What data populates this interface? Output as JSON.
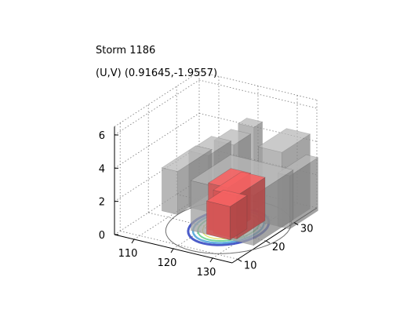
{
  "chart_data": {
    "type": "surface3d",
    "title_lines": [
      "Storm 1186",
      "(U,V) (0.91645,-1.9557)"
    ],
    "xlabel": "",
    "ylabel": "",
    "zlabel": "",
    "x_ticks": [
      110,
      120,
      130
    ],
    "y_ticks": [
      10,
      20,
      30
    ],
    "z_ticks": [
      0,
      2,
      4,
      6
    ],
    "xlim": [
      105,
      135
    ],
    "ylim": [
      8,
      38
    ],
    "zlim": [
      0,
      6.5
    ],
    "grid": true,
    "box": false,
    "surfaces": [
      {
        "name": "",
        "color": "#a8a8a8",
        "opacity": 0.75,
        "cells": [
          {
            "x": [
              107,
              111
            ],
            "y": [
              22,
              34
            ],
            "z": 2.6
          },
          {
            "x": [
              111,
              116
            ],
            "y": [
              26,
              34
            ],
            "z": 3.4
          },
          {
            "x": [
              116,
              121
            ],
            "y": [
              28,
              34
            ],
            "z": 4.1
          },
          {
            "x": [
              120,
              124
            ],
            "y": [
              31,
              34
            ],
            "z": 5.0
          },
          {
            "x": [
              118,
              134
            ],
            "y": [
              17,
              31
            ],
            "z": 3.0
          },
          {
            "x": [
              128,
              134
            ],
            "y": [
              27,
              37
            ],
            "z": 4.5
          },
          {
            "x": [
              133,
              136
            ],
            "y": [
              27,
              37
            ],
            "z": 3.2
          }
        ]
      },
      {
        "name": "",
        "color": "#e05a5a",
        "opacity": 0.9,
        "cells": [
          {
            "x": [
              121,
              126
            ],
            "y": [
              19,
              27
            ],
            "z": 2.8
          },
          {
            "x": [
              123,
              129
            ],
            "y": [
              18,
              28
            ],
            "z": 2.6
          },
          {
            "x": [
              122,
              128
            ],
            "y": [
              17,
              23
            ],
            "z": 2.0
          }
        ]
      }
    ],
    "base_contour_colors": [
      "#2b3fbf",
      "#4aa3d8",
      "#5fcf8a",
      "#e0e060"
    ]
  }
}
